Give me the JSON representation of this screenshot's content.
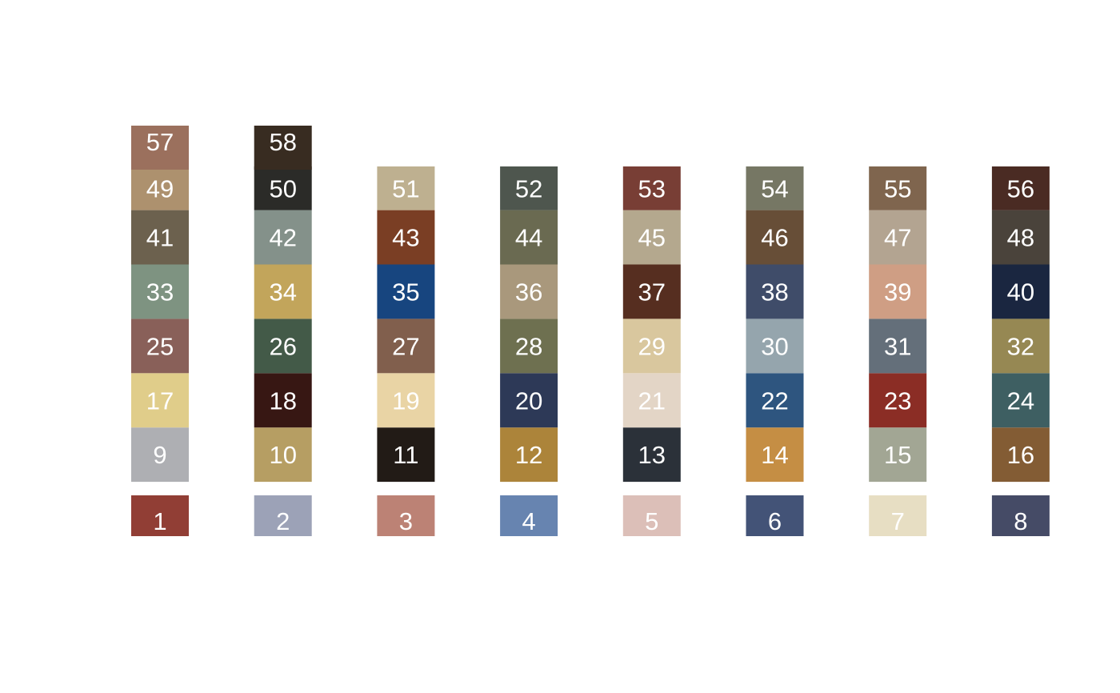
{
  "chart_data": {
    "type": "heatmap",
    "title": "",
    "xlabel": "",
    "ylabel": "",
    "grid": false,
    "legend": "none",
    "columns": 8,
    "swatches": [
      {
        "n": 1,
        "color": "#913E35"
      },
      {
        "n": 2,
        "color": "#9CA2B7"
      },
      {
        "n": 3,
        "color": "#BC8275"
      },
      {
        "n": 4,
        "color": "#6784B0"
      },
      {
        "n": 5,
        "color": "#DCBFB8"
      },
      {
        "n": 6,
        "color": "#435377"
      },
      {
        "n": 7,
        "color": "#E7DEC3"
      },
      {
        "n": 8,
        "color": "#454B66"
      },
      {
        "n": 9,
        "color": "#AEAFB3"
      },
      {
        "n": 10,
        "color": "#B69E63"
      },
      {
        "n": 11,
        "color": "#221B16"
      },
      {
        "n": 12,
        "color": "#AC843A"
      },
      {
        "n": 13,
        "color": "#2B3139"
      },
      {
        "n": 14,
        "color": "#C58E44"
      },
      {
        "n": 15,
        "color": "#A2A694"
      },
      {
        "n": 16,
        "color": "#835C34"
      },
      {
        "n": 17,
        "color": "#E0CD8A"
      },
      {
        "n": 18,
        "color": "#371713"
      },
      {
        "n": 19,
        "color": "#E9D4A5"
      },
      {
        "n": 20,
        "color": "#2D3957"
      },
      {
        "n": 21,
        "color": "#E3D5C6"
      },
      {
        "n": 22,
        "color": "#2E557F"
      },
      {
        "n": 23,
        "color": "#8B2D25"
      },
      {
        "n": 24,
        "color": "#3E5F62"
      },
      {
        "n": 25,
        "color": "#896059"
      },
      {
        "n": 26,
        "color": "#435A48"
      },
      {
        "n": 27,
        "color": "#815F4D"
      },
      {
        "n": 28,
        "color": "#6E7050"
      },
      {
        "n": 29,
        "color": "#D9C79E"
      },
      {
        "n": 30,
        "color": "#95A5AD"
      },
      {
        "n": 31,
        "color": "#646F7A"
      },
      {
        "n": 32,
        "color": "#968853"
      },
      {
        "n": 33,
        "color": "#7E9381"
      },
      {
        "n": 34,
        "color": "#C2A55B"
      },
      {
        "n": 35,
        "color": "#17457F"
      },
      {
        "n": 36,
        "color": "#A9987C"
      },
      {
        "n": 37,
        "color": "#562E20"
      },
      {
        "n": 38,
        "color": "#3F4C69"
      },
      {
        "n": 39,
        "color": "#CF9E84"
      },
      {
        "n": 40,
        "color": "#1A2640"
      },
      {
        "n": 41,
        "color": "#6C614E"
      },
      {
        "n": 42,
        "color": "#84918A"
      },
      {
        "n": 43,
        "color": "#7A3E24"
      },
      {
        "n": 44,
        "color": "#6A6A51"
      },
      {
        "n": 45,
        "color": "#B4A88E"
      },
      {
        "n": 46,
        "color": "#674E37"
      },
      {
        "n": 47,
        "color": "#B3A491"
      },
      {
        "n": 48,
        "color": "#4A433B"
      },
      {
        "n": 49,
        "color": "#AD916E"
      },
      {
        "n": 50,
        "color": "#2B2B28"
      },
      {
        "n": 51,
        "color": "#BEB090"
      },
      {
        "n": 52,
        "color": "#4E564E"
      },
      {
        "n": 53,
        "color": "#783E35"
      },
      {
        "n": 54,
        "color": "#767764"
      },
      {
        "n": 55,
        "color": "#7F654E"
      },
      {
        "n": 56,
        "color": "#4A2B23"
      },
      {
        "n": 57,
        "color": "#9B705D"
      },
      {
        "n": 58,
        "color": "#382C21"
      }
    ]
  }
}
